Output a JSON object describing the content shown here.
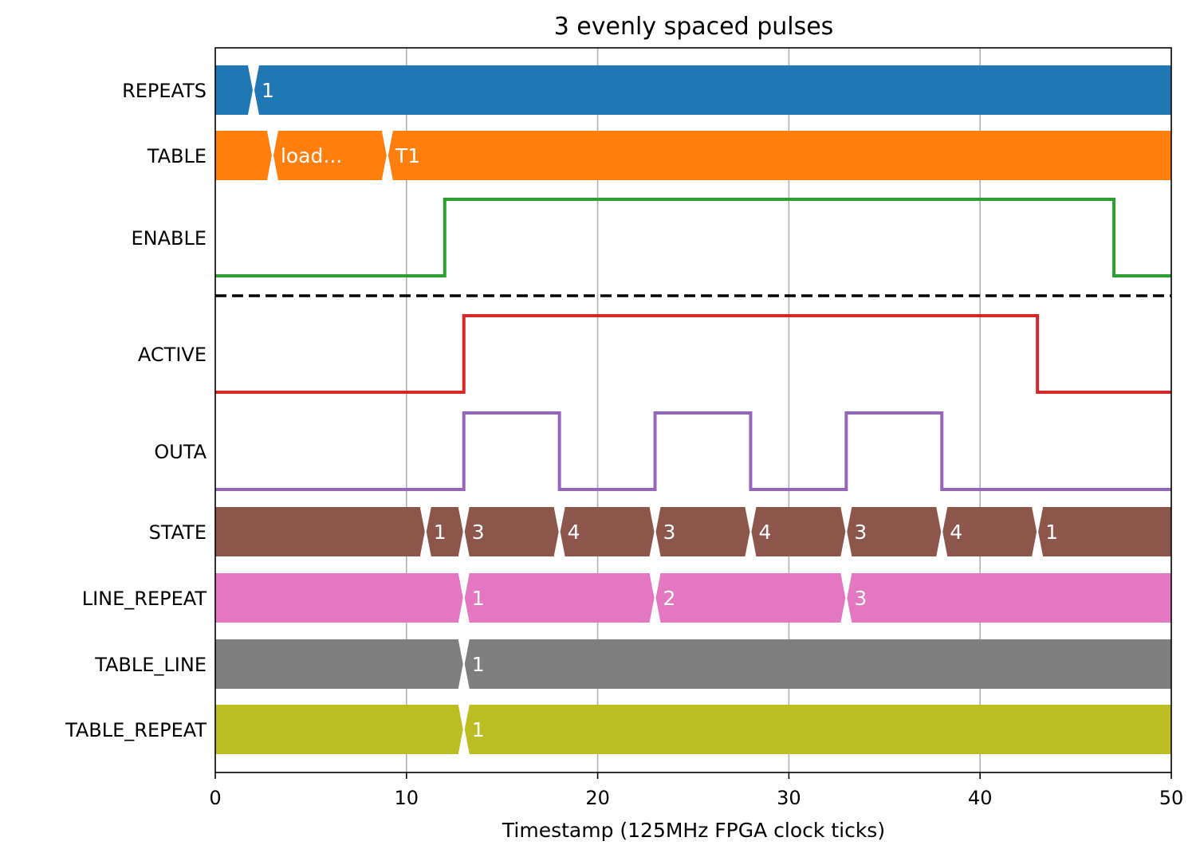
{
  "chart_data": {
    "type": "timing-diagram",
    "title": "3 evenly spaced pulses",
    "xlabel": "Timestamp (125MHz FPGA clock ticks)",
    "xlim": [
      0,
      50
    ],
    "xticks": [
      0,
      10,
      20,
      30,
      40,
      50
    ],
    "grid": "vertical",
    "colors": {
      "REPEATS": "#1f77b4",
      "TABLE": "#ff7f0e",
      "ENABLE": "#2ca02c",
      "ACTIVE": "#d62728",
      "OUTA": "#9467bd",
      "STATE": "#8c564b",
      "LINE_REPEAT": "#e377c2",
      "TABLE_LINE": "#7f7f7f",
      "TABLE_REPEAT": "#bcbd22"
    },
    "signals": [
      {
        "name": "REPEATS",
        "kind": "bus",
        "segments": [
          {
            "start": 0,
            "end": 2,
            "label": ""
          },
          {
            "start": 2,
            "end": 50,
            "label": "1"
          }
        ]
      },
      {
        "name": "TABLE",
        "kind": "bus",
        "segments": [
          {
            "start": 0,
            "end": 3,
            "label": ""
          },
          {
            "start": 3,
            "end": 9,
            "label": "load..."
          },
          {
            "start": 9,
            "end": 50,
            "label": "T1"
          }
        ]
      },
      {
        "name": "ENABLE",
        "kind": "bit",
        "transitions": [
          [
            0,
            0
          ],
          [
            12,
            1
          ],
          [
            47,
            0
          ]
        ]
      },
      {
        "name": "ACTIVE",
        "kind": "bit",
        "transitions": [
          [
            0,
            0
          ],
          [
            13,
            1
          ],
          [
            43,
            0
          ]
        ]
      },
      {
        "name": "OUTA",
        "kind": "bit",
        "transitions": [
          [
            0,
            0
          ],
          [
            13,
            1
          ],
          [
            18,
            0
          ],
          [
            23,
            1
          ],
          [
            28,
            0
          ],
          [
            33,
            1
          ],
          [
            38,
            0
          ]
        ]
      },
      {
        "name": "STATE",
        "kind": "bus",
        "segments": [
          {
            "start": 0,
            "end": 11,
            "label": ""
          },
          {
            "start": 11,
            "end": 13,
            "label": "1"
          },
          {
            "start": 13,
            "end": 18,
            "label": "3"
          },
          {
            "start": 18,
            "end": 23,
            "label": "4"
          },
          {
            "start": 23,
            "end": 28,
            "label": "3"
          },
          {
            "start": 28,
            "end": 33,
            "label": "4"
          },
          {
            "start": 33,
            "end": 38,
            "label": "3"
          },
          {
            "start": 38,
            "end": 43,
            "label": "4"
          },
          {
            "start": 43,
            "end": 50,
            "label": "1"
          }
        ]
      },
      {
        "name": "LINE_REPEAT",
        "kind": "bus",
        "segments": [
          {
            "start": 0,
            "end": 13,
            "label": ""
          },
          {
            "start": 13,
            "end": 23,
            "label": "1"
          },
          {
            "start": 23,
            "end": 33,
            "label": "2"
          },
          {
            "start": 33,
            "end": 50,
            "label": "3"
          }
        ]
      },
      {
        "name": "TABLE_LINE",
        "kind": "bus",
        "segments": [
          {
            "start": 0,
            "end": 13,
            "label": ""
          },
          {
            "start": 13,
            "end": 50,
            "label": "1"
          }
        ]
      },
      {
        "name": "TABLE_REPEAT",
        "kind": "bus",
        "segments": [
          {
            "start": 0,
            "end": 13,
            "label": ""
          },
          {
            "start": 13,
            "end": 50,
            "label": "1"
          }
        ]
      }
    ],
    "separator_after": "ENABLE"
  }
}
